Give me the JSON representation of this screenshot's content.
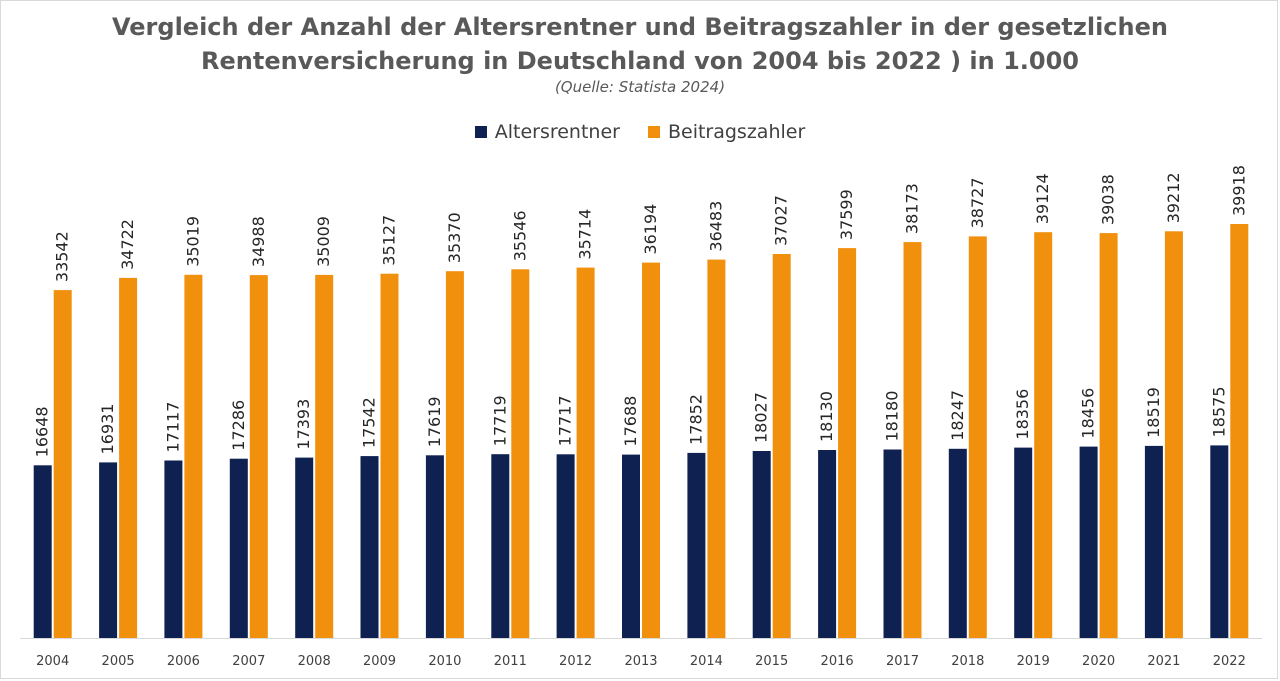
{
  "chart_data": {
    "type": "bar",
    "title_line1": "Vergleich der Anzahl der Altersrentner und Beitragszahler in der gesetzlichen",
    "title_line2": "Rentenversicherung in Deutschland von 2004 bis 2022 ) in 1.000",
    "subtitle": "(Quelle: Statista 2024)",
    "xlabel": "",
    "ylabel": "",
    "ylim": [
      0,
      39918
    ],
    "legend_position": "top",
    "grid": false,
    "categories": [
      "2004",
      "2005",
      "2006",
      "2007",
      "2008",
      "2009",
      "2010",
      "2011",
      "2012",
      "2013",
      "2014",
      "2015",
      "2016",
      "2017",
      "2018",
      "2019",
      "2020",
      "2021",
      "2022"
    ],
    "series": [
      {
        "name": "Altersrentner",
        "color": "#0f2150",
        "values": [
          16648,
          16931,
          17117,
          17286,
          17393,
          17542,
          17619,
          17719,
          17717,
          17688,
          17852,
          18027,
          18130,
          18180,
          18247,
          18356,
          18456,
          18519,
          18575
        ]
      },
      {
        "name": "Beitragszahler",
        "color": "#f0900c",
        "values": [
          33542,
          34722,
          35019,
          34988,
          35009,
          35127,
          35370,
          35546,
          35714,
          36194,
          36483,
          37027,
          37599,
          38173,
          38727,
          39124,
          39038,
          39212,
          39918
        ]
      }
    ]
  }
}
